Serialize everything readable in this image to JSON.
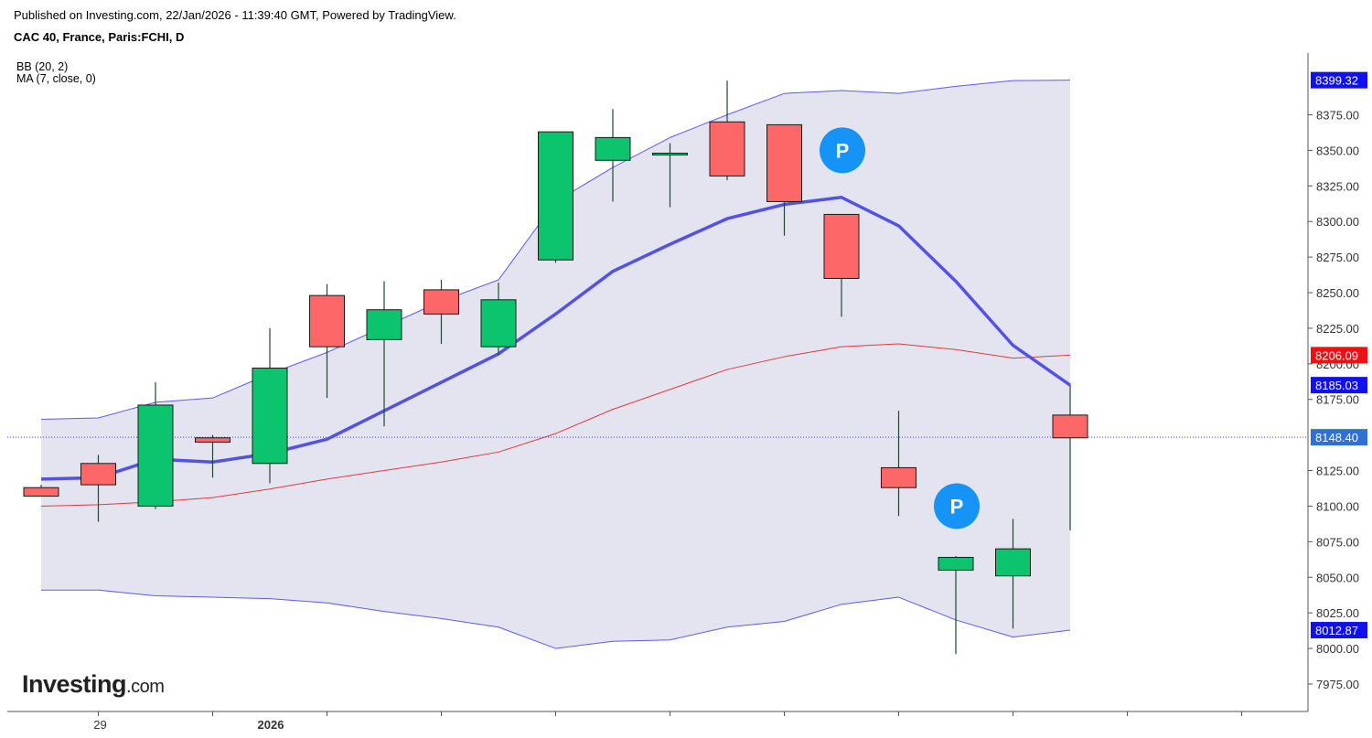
{
  "header": {
    "published": "Published on Investing.com, 22/Jan/2026 - 11:39:40 GMT, Powered by TradingView.",
    "instrument": "CAC 40, France, Paris:FCHI, D"
  },
  "legend": {
    "bb": "BB (20, 2)",
    "ma": "MA (7, close, 0)"
  },
  "logo": {
    "main": "Investing",
    "suffix": ".com"
  },
  "colors": {
    "up": "#0dc46e",
    "down": "#fe6767",
    "candle_border": "#1a1a1a",
    "bb_band": "#5b5bf5",
    "bb_fill": "#e4e4f0",
    "bb_basis": "#e03a3a",
    "ma": "#5252e8",
    "current_price_line": "#3344ee",
    "marker": "#1593f7"
  },
  "chart_data": {
    "type": "candlestick",
    "y_axis": {
      "min": 7960,
      "max": 8420,
      "ticks": [
        "8375.00",
        "8350.00",
        "8325.00",
        "8300.00",
        "8275.00",
        "8250.00",
        "8225.00",
        "8200.00",
        "8175.00",
        "8125.00",
        "8100.00",
        "8075.00",
        "8050.00",
        "8025.00",
        "8000.00",
        "7975.00"
      ]
    },
    "x_axis": {
      "labels": [
        {
          "text": "29",
          "index": 1,
          "bold": false
        },
        {
          "text": "2026",
          "index": 4,
          "bold": true
        }
      ]
    },
    "candles": [
      {
        "o": 8113,
        "h": 8115,
        "l": 8107,
        "c": 8107
      },
      {
        "o": 8130,
        "h": 8136,
        "l": 8089,
        "c": 8115
      },
      {
        "o": 8100,
        "h": 8187,
        "l": 8098,
        "c": 8171
      },
      {
        "o": 8148,
        "h": 8150,
        "l": 8120,
        "c": 8145
      },
      {
        "o": 8130,
        "h": 8225,
        "l": 8116,
        "c": 8197
      },
      {
        "o": 8248,
        "h": 8256,
        "l": 8176,
        "c": 8212
      },
      {
        "o": 8217,
        "h": 8258,
        "l": 8156,
        "c": 8238
      },
      {
        "o": 8252,
        "h": 8259,
        "l": 8214,
        "c": 8235
      },
      {
        "o": 8212,
        "h": 8257,
        "l": 8206,
        "c": 8245
      },
      {
        "o": 8273,
        "h": 8363,
        "l": 8271,
        "c": 8363
      },
      {
        "o": 8343,
        "h": 8379,
        "l": 8314,
        "c": 8359
      },
      {
        "o": 8348,
        "h": 8355,
        "l": 8310,
        "c": 8348
      },
      {
        "o": 8370,
        "h": 8399,
        "l": 8329,
        "c": 8332
      },
      {
        "o": 8368,
        "h": 8367,
        "l": 8290,
        "c": 8314
      },
      {
        "o": 8305,
        "h": 8305,
        "l": 8233,
        "c": 8260
      },
      {
        "o": 8127,
        "h": 8167,
        "l": 8093,
        "c": 8113
      },
      {
        "o": 8055,
        "h": 8065,
        "l": 7996,
        "c": 8064
      },
      {
        "o": 8051,
        "h": 8091,
        "l": 8014,
        "c": 8070
      },
      {
        "o": 8164,
        "h": 8185,
        "l": 8083,
        "c": 8148
      }
    ],
    "indicators": {
      "bb_upper": [
        8161,
        8162,
        8173,
        8176,
        8193,
        8208,
        8226,
        8244,
        8259,
        8314,
        8338,
        8359,
        8375,
        8390,
        8392,
        8390,
        8395,
        8399,
        8399.32
      ],
      "bb_lower": [
        8041,
        8041,
        8037,
        8036,
        8035,
        8032,
        8026,
        8021,
        8015,
        8000,
        8005,
        8006,
        8015,
        8019,
        8031,
        8036,
        8020,
        8008,
        8012.87
      ],
      "bb_basis": [
        8100,
        8101,
        8103,
        8106,
        8112,
        8119,
        8125,
        8131,
        8138,
        8151,
        8168,
        8182,
        8196,
        8205,
        8212,
        8214,
        8210,
        8204,
        8206.09
      ],
      "ma": [
        8119,
        8120,
        8133,
        8131,
        8137,
        8147,
        8167,
        8187,
        8207,
        8235,
        8265,
        8284,
        8302,
        8312,
        8317,
        8297,
        8258,
        8213,
        8185.03
      ],
      "bb_start_index": 0
    },
    "price_tags": [
      {
        "text": "8399.32",
        "value": 8399.32,
        "color": "#1111ee"
      },
      {
        "text": "8206.09",
        "value": 8206.09,
        "color": "#ee1111"
      },
      {
        "text": "8185.03",
        "value": 8185.03,
        "color": "#1111ee"
      },
      {
        "text": "8148.40",
        "value": 8148.4,
        "color": "#2f6fd6"
      },
      {
        "text": "8012.87",
        "value": 8012.87,
        "color": "#1111ee"
      }
    ],
    "current_price": 8148.4,
    "markers": [
      {
        "label": "P",
        "index": 14,
        "value": 8350
      },
      {
        "label": "P",
        "index": 16,
        "value": 8100
      }
    ]
  }
}
